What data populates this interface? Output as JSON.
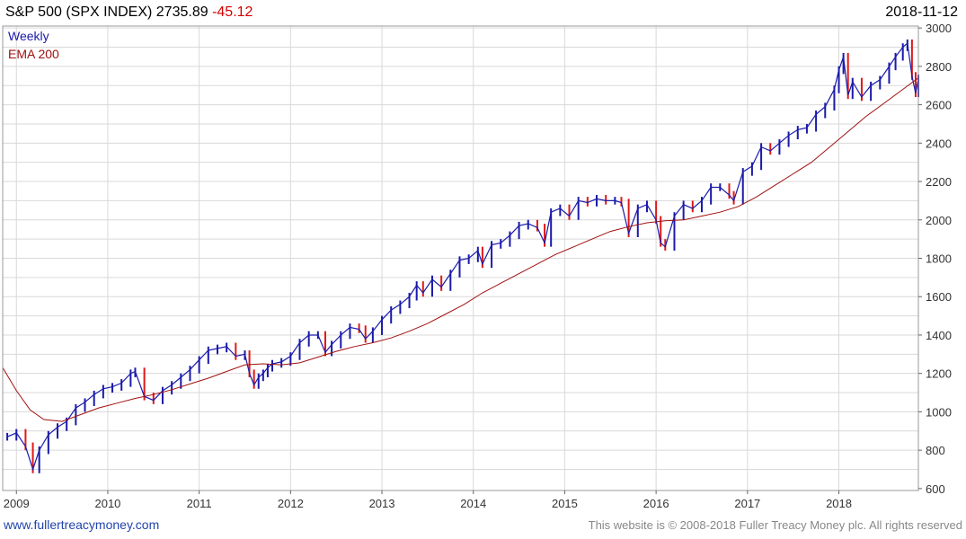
{
  "header": {
    "title": "S&P 500 (SPX INDEX) 2735.89",
    "change": "-45.12",
    "date": "2018-11-12"
  },
  "footer": {
    "link": "www.fullertreacymoney.com",
    "copyright": "This website is © 2008-2018 Fuller Treacy Money plc. All rights reserved"
  },
  "colors": {
    "up": "#1a1aaa",
    "down": "#e01818",
    "ema": "#a01010",
    "grid": "#d9d9d9"
  },
  "chart_data": {
    "type": "line",
    "title": "S&P 500 (SPX INDEX) 2735.89",
    "xlabel": "",
    "ylabel": "",
    "x_ticks": [
      "2009",
      "2010",
      "2011",
      "2012",
      "2013",
      "2014",
      "2015",
      "2016",
      "2017",
      "2018"
    ],
    "y_ticks": [
      600,
      800,
      1000,
      1200,
      1400,
      1600,
      1800,
      2000,
      2200,
      2400,
      2600,
      2800,
      3000
    ],
    "ylim": [
      590,
      3010
    ],
    "xlim": [
      2008.85,
      2018.87
    ],
    "y_axis_side": "right",
    "grid": true,
    "legend": "top-left",
    "series": [
      {
        "name": "Weekly",
        "style": "price bars (blue up, red down)",
        "x": [
          2008.9,
          2009.0,
          2009.1,
          2009.18,
          2009.25,
          2009.35,
          2009.45,
          2009.55,
          2009.65,
          2009.75,
          2009.85,
          2009.95,
          2010.05,
          2010.15,
          2010.25,
          2010.3,
          2010.4,
          2010.5,
          2010.6,
          2010.7,
          2010.8,
          2010.9,
          2011.0,
          2011.1,
          2011.2,
          2011.3,
          2011.4,
          2011.5,
          2011.55,
          2011.6,
          2011.65,
          2011.7,
          2011.75,
          2011.8,
          2011.9,
          2012.0,
          2012.1,
          2012.2,
          2012.3,
          2012.38,
          2012.45,
          2012.55,
          2012.65,
          2012.75,
          2012.82,
          2012.9,
          2013.0,
          2013.1,
          2013.2,
          2013.3,
          2013.38,
          2013.45,
          2013.55,
          2013.65,
          2013.75,
          2013.85,
          2013.95,
          2014.05,
          2014.1,
          2014.2,
          2014.3,
          2014.4,
          2014.5,
          2014.6,
          2014.7,
          2014.78,
          2014.85,
          2014.95,
          2015.05,
          2015.15,
          2015.25,
          2015.35,
          2015.45,
          2015.55,
          2015.62,
          2015.7,
          2015.8,
          2015.9,
          2016.0,
          2016.05,
          2016.1,
          2016.2,
          2016.3,
          2016.4,
          2016.5,
          2016.6,
          2016.7,
          2016.8,
          2016.85,
          2016.95,
          2017.05,
          2017.15,
          2017.25,
          2017.35,
          2017.45,
          2017.55,
          2017.65,
          2017.75,
          2017.85,
          2017.95,
          2018.0,
          2018.05,
          2018.1,
          2018.15,
          2018.25,
          2018.35,
          2018.45,
          2018.55,
          2018.62,
          2018.7,
          2018.75,
          2018.8,
          2018.84,
          2018.87
        ],
        "values": [
          870,
          890,
          820,
          700,
          800,
          880,
          920,
          950,
          1020,
          1050,
          1090,
          1120,
          1130,
          1150,
          1200,
          1210,
          1080,
          1060,
          1110,
          1140,
          1180,
          1220,
          1270,
          1320,
          1330,
          1340,
          1290,
          1300,
          1200,
          1140,
          1180,
          1200,
          1230,
          1250,
          1260,
          1290,
          1360,
          1400,
          1400,
          1310,
          1350,
          1400,
          1440,
          1430,
          1380,
          1420,
          1480,
          1530,
          1560,
          1600,
          1660,
          1620,
          1690,
          1650,
          1720,
          1790,
          1800,
          1840,
          1770,
          1870,
          1880,
          1920,
          1970,
          1980,
          1960,
          1880,
          2040,
          2060,
          2020,
          2100,
          2090,
          2110,
          2100,
          2100,
          2090,
          1930,
          2060,
          2080,
          2000,
          1880,
          1860,
          2020,
          2080,
          2060,
          2100,
          2170,
          2170,
          2130,
          2100,
          2250,
          2280,
          2380,
          2360,
          2400,
          2440,
          2470,
          2480,
          2550,
          2590,
          2680,
          2780,
          2850,
          2650,
          2720,
          2640,
          2700,
          2730,
          2800,
          2850,
          2900,
          2920,
          2750,
          2660,
          2736
        ]
      },
      {
        "name": "EMA 200",
        "style": "line",
        "x": [
          2008.85,
          2009.0,
          2009.15,
          2009.3,
          2009.5,
          2009.7,
          2009.9,
          2010.1,
          2010.3,
          2010.5,
          2010.7,
          2010.9,
          2011.1,
          2011.3,
          2011.5,
          2011.7,
          2011.9,
          2012.1,
          2012.3,
          2012.5,
          2012.7,
          2012.9,
          2013.1,
          2013.3,
          2013.5,
          2013.7,
          2013.9,
          2014.1,
          2014.3,
          2014.5,
          2014.7,
          2014.9,
          2015.1,
          2015.3,
          2015.5,
          2015.7,
          2015.9,
          2016.1,
          2016.3,
          2016.5,
          2016.7,
          2016.9,
          2017.1,
          2017.3,
          2017.5,
          2017.7,
          2017.9,
          2018.1,
          2018.3,
          2018.5,
          2018.7,
          2018.87
        ],
        "values": [
          1230,
          1110,
          1010,
          960,
          950,
          985,
          1020,
          1045,
          1070,
          1090,
          1115,
          1145,
          1175,
          1210,
          1245,
          1250,
          1245,
          1255,
          1285,
          1315,
          1340,
          1360,
          1385,
          1420,
          1460,
          1510,
          1560,
          1620,
          1670,
          1720,
          1770,
          1820,
          1860,
          1900,
          1940,
          1965,
          1985,
          1995,
          2000,
          2020,
          2040,
          2070,
          2120,
          2180,
          2240,
          2300,
          2380,
          2460,
          2540,
          2610,
          2680,
          2740
        ]
      }
    ]
  }
}
